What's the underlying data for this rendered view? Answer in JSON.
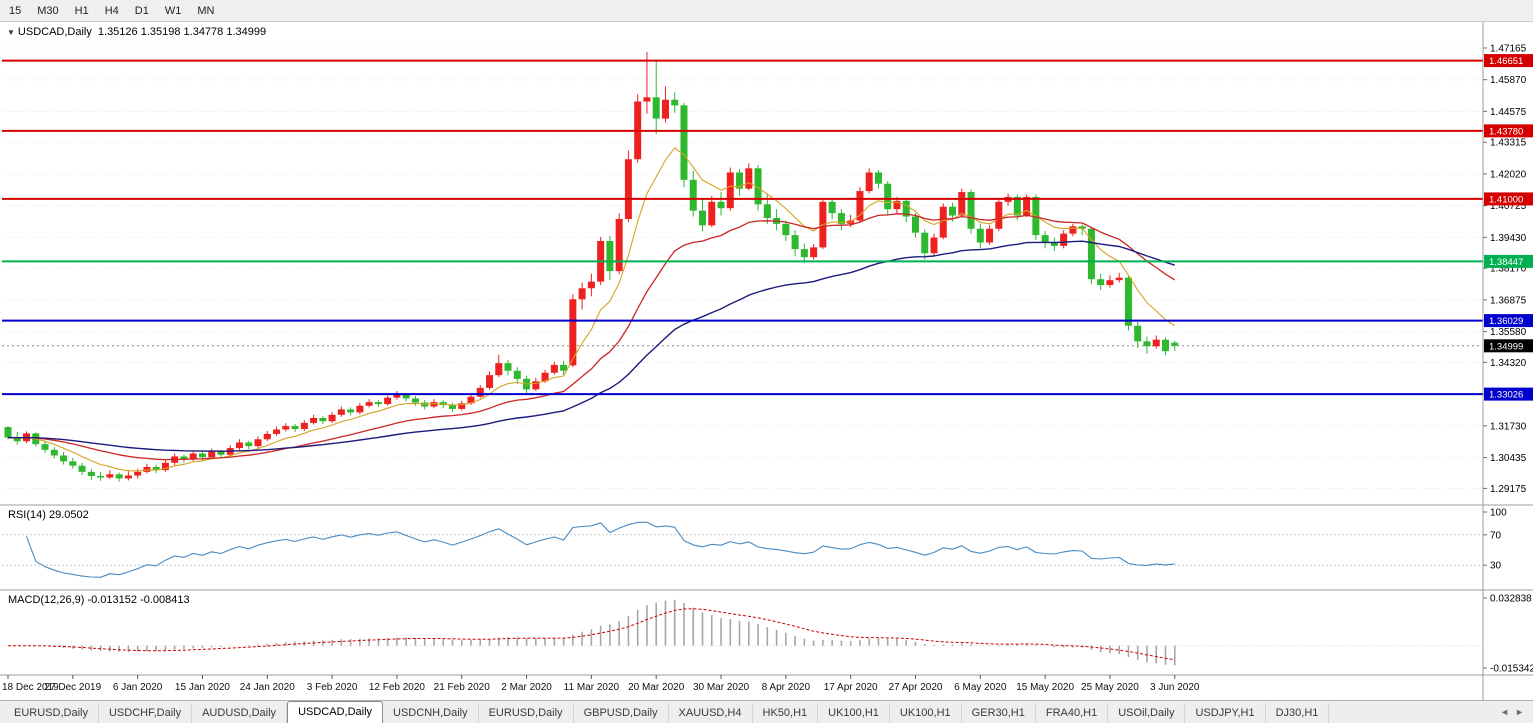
{
  "toolbar": {
    "timeframes": [
      "15",
      "M30",
      "H1",
      "H4",
      "D1",
      "W1",
      "MN"
    ]
  },
  "chart": {
    "title": {
      "collapse_icon": "▼",
      "symbol": "USDCAD,Daily",
      "ohlc": "1.35126 1.35198 1.34778 1.34999"
    }
  },
  "chart_data": {
    "type": "candlestick",
    "symbol": "USDCAD",
    "timeframe": "Daily",
    "colors": {
      "bull": "#ef2020",
      "bear": "#2eb82e",
      "ma_fast": "#d6a320",
      "ma_mid": "#cc2525",
      "ma_slow": "#1b1b7e",
      "rsi_line": "#4a8bc2",
      "macd_hist": "#a6a6a6",
      "macd_signal": "#cc0000",
      "grid": "#e8e8e8",
      "separator": "#9c9c9c"
    },
    "price_axis": {
      "min": 1.287,
      "max": 1.479,
      "ticks": [
        1.47165,
        1.4587,
        1.44575,
        1.43315,
        1.4202,
        1.40725,
        1.3943,
        1.3817,
        1.36875,
        1.3558,
        1.3432,
        1.33025,
        1.3173,
        1.30435,
        1.29175
      ]
    },
    "hlines": [
      {
        "value": 1.46651,
        "label": "1.46651",
        "color": "#d40000"
      },
      {
        "value": 1.4378,
        "label": "1.43780",
        "color": "#d40000"
      },
      {
        "value": 1.41,
        "label": "1.41000",
        "color": "#d40000"
      },
      {
        "value": 1.38447,
        "label": "1.38447",
        "color": "#00b050"
      },
      {
        "value": 1.36029,
        "label": "1.36029",
        "color": "#0000cc"
      },
      {
        "value": 1.33026,
        "label": "1.33026",
        "color": "#0000cc"
      }
    ],
    "current_price": {
      "value": 1.34999,
      "label": "1.34999",
      "bg": "#000000"
    },
    "ma_periods": {
      "fast": 8,
      "mid": 24,
      "slow": 55
    },
    "x_labels": [
      {
        "i": 0,
        "t": "18 Dec 2019"
      },
      {
        "i": 7,
        "t": "27 Dec 2019"
      },
      {
        "i": 14,
        "t": "6 Jan 2020"
      },
      {
        "i": 21,
        "t": "15 Jan 2020"
      },
      {
        "i": 28,
        "t": "24 Jan 2020"
      },
      {
        "i": 35,
        "t": "3 Feb 2020"
      },
      {
        "i": 42,
        "t": "12 Feb 2020"
      },
      {
        "i": 49,
        "t": "21 Feb 2020"
      },
      {
        "i": 56,
        "t": "2 Mar 2020"
      },
      {
        "i": 63,
        "t": "11 Mar 2020"
      },
      {
        "i": 70,
        "t": "20 Mar 2020"
      },
      {
        "i": 77,
        "t": "30 Mar 2020"
      },
      {
        "i": 84,
        "t": "8 Apr 2020"
      },
      {
        "i": 91,
        "t": "17 Apr 2020"
      },
      {
        "i": 98,
        "t": "27 Apr 2020"
      },
      {
        "i": 105,
        "t": "6 May 2020"
      },
      {
        "i": 112,
        "t": "15 May 2020"
      },
      {
        "i": 119,
        "t": "25 May 2020"
      },
      {
        "i": 126,
        "t": "3 Jun 2020"
      }
    ],
    "candles": [
      [
        1.3168,
        1.3172,
        1.3118,
        1.3125
      ],
      [
        1.3125,
        1.3148,
        1.3096,
        1.311
      ],
      [
        1.311,
        1.315,
        1.3102,
        1.3142
      ],
      [
        1.3142,
        1.3146,
        1.3088,
        1.3098
      ],
      [
        1.3098,
        1.3112,
        1.3062,
        1.3075
      ],
      [
        1.3075,
        1.3086,
        1.304,
        1.3052
      ],
      [
        1.3052,
        1.3066,
        1.3015,
        1.3028
      ],
      [
        1.3028,
        1.3042,
        1.2998,
        1.301
      ],
      [
        1.301,
        1.3022,
        1.2972,
        1.2985
      ],
      [
        1.2985,
        1.2996,
        1.2952,
        1.2968
      ],
      [
        1.2968,
        1.2985,
        1.2948,
        1.2962
      ],
      [
        1.2962,
        1.2992,
        1.2955,
        1.2975
      ],
      [
        1.2975,
        1.2982,
        1.2945,
        1.2958
      ],
      [
        1.2958,
        1.2988,
        1.295,
        1.297
      ],
      [
        1.297,
        1.2998,
        1.2958,
        1.2985
      ],
      [
        1.2985,
        1.3018,
        1.2978,
        1.3005
      ],
      [
        1.3005,
        1.3014,
        1.298,
        1.2992
      ],
      [
        1.2992,
        1.3035,
        1.2985,
        1.3022
      ],
      [
        1.3022,
        1.306,
        1.3012,
        1.3048
      ],
      [
        1.3048,
        1.3056,
        1.3022,
        1.3035
      ],
      [
        1.3035,
        1.3072,
        1.3028,
        1.306
      ],
      [
        1.306,
        1.3068,
        1.3032,
        1.3045
      ],
      [
        1.3045,
        1.308,
        1.3038,
        1.3068
      ],
      [
        1.3068,
        1.3075,
        1.3042,
        1.3055
      ],
      [
        1.3055,
        1.3094,
        1.3048,
        1.3082
      ],
      [
        1.3082,
        1.3118,
        1.3075,
        1.3105
      ],
      [
        1.3105,
        1.3112,
        1.3078,
        1.309
      ],
      [
        1.309,
        1.313,
        1.3082,
        1.3118
      ],
      [
        1.3118,
        1.3152,
        1.311,
        1.314
      ],
      [
        1.314,
        1.317,
        1.3132,
        1.3158
      ],
      [
        1.3158,
        1.3184,
        1.315,
        1.3172
      ],
      [
        1.3172,
        1.318,
        1.3148,
        1.316
      ],
      [
        1.316,
        1.3196,
        1.3152,
        1.3185
      ],
      [
        1.3185,
        1.3218,
        1.3178,
        1.3205
      ],
      [
        1.3205,
        1.3212,
        1.318,
        1.3192
      ],
      [
        1.3192,
        1.323,
        1.3185,
        1.3218
      ],
      [
        1.3218,
        1.3252,
        1.321,
        1.324
      ],
      [
        1.324,
        1.3248,
        1.3215,
        1.3228
      ],
      [
        1.3228,
        1.3266,
        1.322,
        1.3255
      ],
      [
        1.3255,
        1.3282,
        1.3248,
        1.327
      ],
      [
        1.327,
        1.3278,
        1.325,
        1.3262
      ],
      [
        1.3262,
        1.3298,
        1.3255,
        1.3288
      ],
      [
        1.3288,
        1.3315,
        1.328,
        1.3302
      ],
      [
        1.3302,
        1.3308,
        1.3272,
        1.3285
      ],
      [
        1.3285,
        1.3295,
        1.3255,
        1.3268
      ],
      [
        1.3268,
        1.3278,
        1.324,
        1.3252
      ],
      [
        1.3252,
        1.3282,
        1.3245,
        1.327
      ],
      [
        1.327,
        1.3278,
        1.3246,
        1.3258
      ],
      [
        1.3258,
        1.3268,
        1.323,
        1.3242
      ],
      [
        1.3242,
        1.3275,
        1.3235,
        1.3265
      ],
      [
        1.3265,
        1.3305,
        1.3258,
        1.3292
      ],
      [
        1.3292,
        1.334,
        1.3285,
        1.3328
      ],
      [
        1.3328,
        1.3395,
        1.332,
        1.338
      ],
      [
        1.338,
        1.3464,
        1.3372,
        1.3429
      ],
      [
        1.3429,
        1.3442,
        1.338,
        1.3398
      ],
      [
        1.3398,
        1.3412,
        1.3345,
        1.3365
      ],
      [
        1.3365,
        1.3378,
        1.3302,
        1.3322
      ],
      [
        1.3322,
        1.337,
        1.3315,
        1.3355
      ],
      [
        1.3355,
        1.3402,
        1.3348,
        1.339
      ],
      [
        1.339,
        1.3435,
        1.3382,
        1.3422
      ],
      [
        1.3422,
        1.3438,
        1.338,
        1.3398
      ],
      [
        1.342,
        1.371,
        1.3412,
        1.369
      ],
      [
        1.369,
        1.3758,
        1.3648,
        1.3735
      ],
      [
        1.3735,
        1.3795,
        1.3702,
        1.3762
      ],
      [
        1.3762,
        1.3945,
        1.3748,
        1.3928
      ],
      [
        1.3928,
        1.3948,
        1.3768,
        1.3805
      ],
      [
        1.3805,
        1.4042,
        1.3792,
        1.4018
      ],
      [
        1.4018,
        1.4298,
        1.4005,
        1.4262
      ],
      [
        1.4262,
        1.4528,
        1.4248,
        1.4498
      ],
      [
        1.4498,
        1.47,
        1.4448,
        1.4515
      ],
      [
        1.4515,
        1.4669,
        1.4365,
        1.4428
      ],
      [
        1.4428,
        1.456,
        1.4412,
        1.4505
      ],
      [
        1.4505,
        1.4535,
        1.4452,
        1.4482
      ],
      [
        1.4482,
        1.4492,
        1.4148,
        1.4178
      ],
      [
        1.4178,
        1.4215,
        1.4028,
        1.4052
      ],
      [
        1.4052,
        1.4102,
        1.3968,
        1.3992
      ],
      [
        1.3992,
        1.4112,
        1.3985,
        1.4088
      ],
      [
        1.4088,
        1.4128,
        1.4032,
        1.4062
      ],
      [
        1.4062,
        1.4228,
        1.4052,
        1.4208
      ],
      [
        1.4208,
        1.4222,
        1.4112,
        1.4142
      ],
      [
        1.4142,
        1.4245,
        1.4135,
        1.4225
      ],
      [
        1.4225,
        1.4238,
        1.4052,
        1.4078
      ],
      [
        1.4078,
        1.4122,
        1.3998,
        1.4022
      ],
      [
        1.4022,
        1.4058,
        1.3972,
        1.3998
      ],
      [
        1.3998,
        1.4012,
        1.3928,
        1.3952
      ],
      [
        1.3952,
        1.3972,
        1.3865,
        1.3895
      ],
      [
        1.3895,
        1.3918,
        1.3838,
        1.3862
      ],
      [
        1.3862,
        1.3915,
        1.3852,
        1.3902
      ],
      [
        1.3902,
        1.4102,
        1.3895,
        1.4088
      ],
      [
        1.4088,
        1.4098,
        1.4018,
        1.4042
      ],
      [
        1.4042,
        1.4058,
        1.3972,
        1.3998
      ],
      [
        1.3998,
        1.4035,
        1.3985,
        1.4012
      ],
      [
        1.4012,
        1.4148,
        1.4005,
        1.4132
      ],
      [
        1.4132,
        1.4225,
        1.4122,
        1.4208
      ],
      [
        1.4208,
        1.4218,
        1.4142,
        1.4162
      ],
      [
        1.4162,
        1.4172,
        1.4032,
        1.4058
      ],
      [
        1.4058,
        1.4108,
        1.4042,
        1.4092
      ],
      [
        1.4092,
        1.4102,
        1.4005,
        1.4028
      ],
      [
        1.4028,
        1.4042,
        1.3942,
        1.3962
      ],
      [
        1.3962,
        1.3975,
        1.3852,
        1.3878
      ],
      [
        1.3878,
        1.3958,
        1.3868,
        1.3942
      ],
      [
        1.3942,
        1.4082,
        1.3935,
        1.4068
      ],
      [
        1.4068,
        1.4085,
        1.4008,
        1.4032
      ],
      [
        1.4032,
        1.4142,
        1.4025,
        1.4128
      ],
      [
        1.4128,
        1.4138,
        1.3958,
        1.3978
      ],
      [
        1.3978,
        1.3998,
        1.3898,
        1.3922
      ],
      [
        1.3922,
        1.3992,
        1.3912,
        1.3978
      ],
      [
        1.3978,
        1.4098,
        1.3968,
        1.4088
      ],
      [
        1.4088,
        1.4122,
        1.4072,
        1.4108
      ],
      [
        1.4108,
        1.4118,
        1.4012,
        1.4032
      ],
      [
        1.4032,
        1.4118,
        1.4025,
        1.4108
      ],
      [
        1.4108,
        1.4118,
        1.3932,
        1.3952
      ],
      [
        1.3952,
        1.3968,
        1.3898,
        1.392
      ],
      [
        1.392,
        1.3942,
        1.3888,
        1.3908
      ],
      [
        1.3908,
        1.3972,
        1.3898,
        1.3958
      ],
      [
        1.3958,
        1.3998,
        1.3948,
        1.3988
      ],
      [
        1.3988,
        1.3995,
        1.3952,
        1.3978
      ],
      [
        1.3978,
        1.3985,
        1.3752,
        1.3772
      ],
      [
        1.3772,
        1.3795,
        1.3728,
        1.3748
      ],
      [
        1.3748,
        1.3788,
        1.3738,
        1.3768
      ],
      [
        1.3768,
        1.3798,
        1.3758,
        1.3778
      ],
      [
        1.3778,
        1.3785,
        1.3562,
        1.3582
      ],
      [
        1.3582,
        1.3598,
        1.3492,
        1.3518
      ],
      [
        1.3518,
        1.3538,
        1.3468,
        1.3498
      ],
      [
        1.3498,
        1.3542,
        1.3488,
        1.3525
      ],
      [
        1.3525,
        1.3535,
        1.3462,
        1.3478
      ],
      [
        1.35126,
        1.35198,
        1.34778,
        1.34999
      ]
    ],
    "rsi": {
      "label": "RSI(14) 29.0502",
      "period": 14,
      "levels": [
        100,
        70,
        30
      ],
      "last": 29.0502
    },
    "macd": {
      "label": "MACD(12,26,9) -0.013152 -0.008413",
      "fast": 12,
      "slow": 26,
      "signal": 9,
      "axis_max": 0.032838,
      "axis_min": -0.015342,
      "last_main": -0.013152,
      "last_signal": -0.008413
    }
  },
  "tabs": {
    "nav": {
      "left": "◄",
      "right": "►"
    },
    "items": [
      {
        "label": "EURUSD,Daily",
        "active": false
      },
      {
        "label": "USDCHF,Daily",
        "active": false
      },
      {
        "label": "AUDUSD,Daily",
        "active": false
      },
      {
        "label": "USDCAD,Daily",
        "active": true
      },
      {
        "label": "USDCNH,Daily",
        "active": false
      },
      {
        "label": "EURUSD,Daily",
        "active": false
      },
      {
        "label": "GBPUSD,Daily",
        "active": false
      },
      {
        "label": "XAUUSD,H4",
        "active": false
      },
      {
        "label": "HK50,H1",
        "active": false
      },
      {
        "label": "UK100,H1",
        "active": false
      },
      {
        "label": "UK100,H1",
        "active": false
      },
      {
        "label": "GER30,H1",
        "active": false
      },
      {
        "label": "FRA40,H1",
        "active": false
      },
      {
        "label": "USOil,Daily",
        "active": false
      },
      {
        "label": "USDJPY,H1",
        "active": false
      },
      {
        "label": "DJ30,H1",
        "active": false
      }
    ]
  }
}
